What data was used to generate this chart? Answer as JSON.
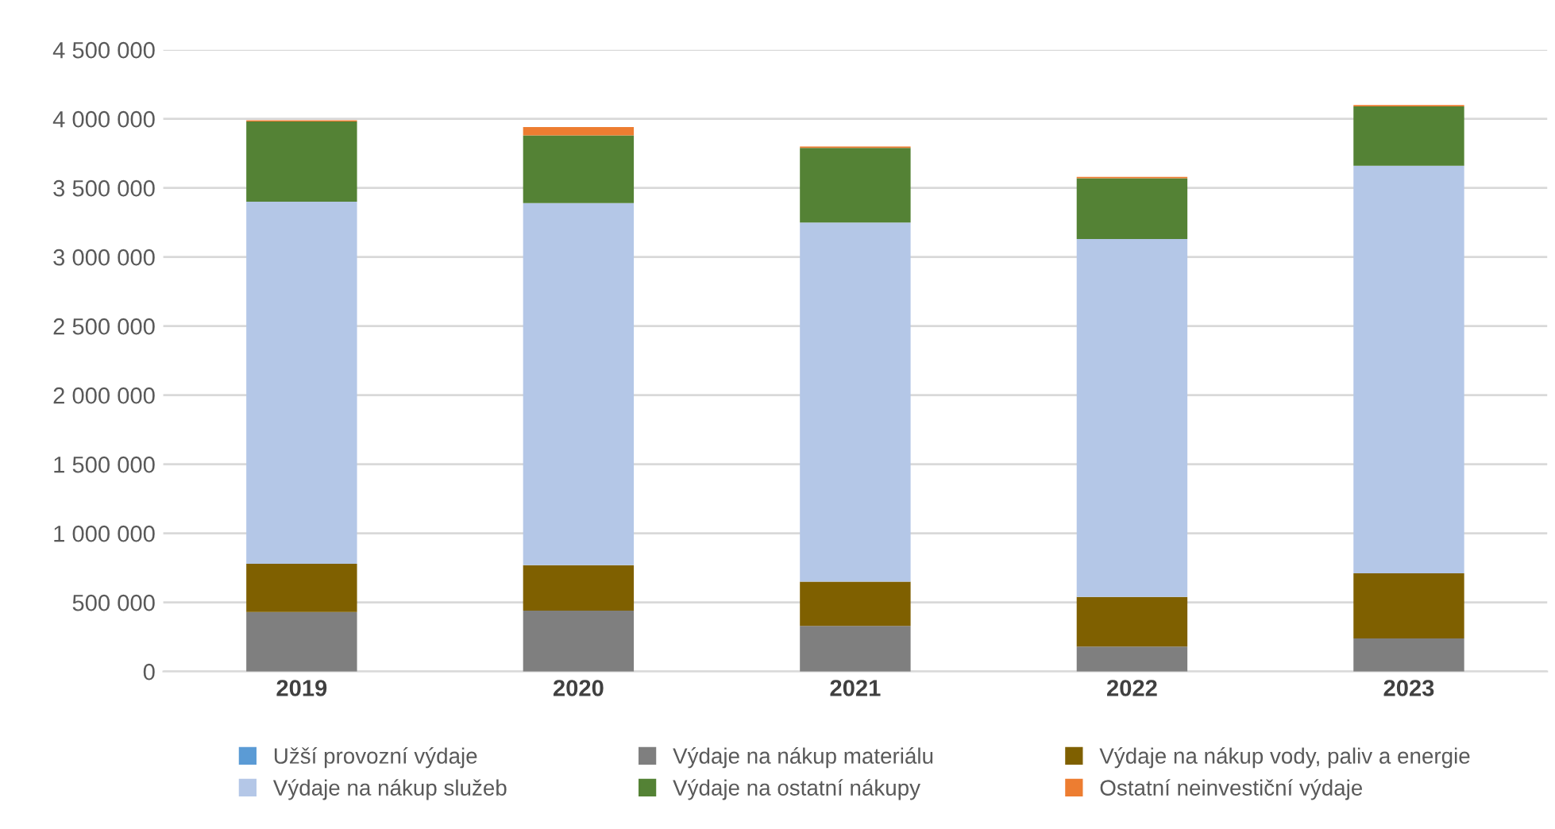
{
  "chart_data": {
    "type": "bar",
    "stacked": true,
    "categories": [
      "2019",
      "2020",
      "2021",
      "2022",
      "2023"
    ],
    "series": [
      {
        "name": "Užší provozní výdaje",
        "color": "#5b9bd5",
        "values": [
          0,
          0,
          0,
          0,
          0
        ]
      },
      {
        "name": "Výdaje na nákup materiálu",
        "color": "#7f7f7f",
        "values": [
          430000,
          440000,
          330000,
          180000,
          240000
        ]
      },
      {
        "name": "Výdaje na nákup vody, paliv a energie",
        "color": "#7f6000",
        "values": [
          350000,
          330000,
          320000,
          360000,
          470000
        ]
      },
      {
        "name": "Výdaje na nákup služeb",
        "color": "#b4c7e7",
        "values": [
          2620000,
          2620000,
          2600000,
          2590000,
          2950000
        ]
      },
      {
        "name": "Výdaje na ostatní nákupy",
        "color": "#548235",
        "values": [
          580000,
          490000,
          540000,
          440000,
          430000
        ]
      },
      {
        "name": "Ostatní neinvestiční výdaje",
        "color": "#ed7d31",
        "values": [
          10000,
          60000,
          10000,
          10000,
          10000
        ]
      }
    ],
    "ylim": [
      0,
      4500000
    ],
    "yticks": [
      0,
      {
        "value": 500000,
        "label": "500 000"
      },
      {
        "value": 1000000,
        "label": "1 000 000"
      },
      {
        "value": 1500000,
        "label": "1 500 000"
      },
      {
        "value": 2000000,
        "label": "2 000 000"
      },
      {
        "value": 2500000,
        "label": "2 500 000"
      },
      {
        "value": 3000000,
        "label": "3 000 000"
      },
      {
        "value": 3500000,
        "label": "3 500 000"
      },
      {
        "value": 4000000,
        "label": "4 000 000"
      },
      {
        "value": 4500000,
        "label": "4 500 000"
      }
    ],
    "grid": "y",
    "legend": "bottom"
  }
}
